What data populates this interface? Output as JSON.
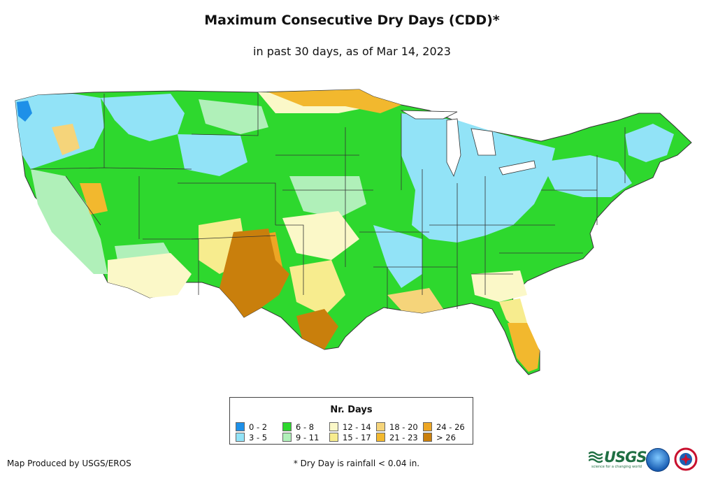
{
  "header": {
    "title": "Maximum Consecutive Dry Days (CDD)*",
    "subtitle": "in past 30 days, as of Mar 14, 2023"
  },
  "legend": {
    "title": "Nr. Days",
    "items": [
      {
        "label": "0 - 2",
        "color": "#1e90e8"
      },
      {
        "label": "3 - 5",
        "color": "#92e3f7"
      },
      {
        "label": "6 - 8",
        "color": "#2ed82e"
      },
      {
        "label": "9 - 11",
        "color": "#b0f0b9"
      },
      {
        "label": "12 - 14",
        "color": "#fbf8c8"
      },
      {
        "label": "15 - 17",
        "color": "#f7ec8e"
      },
      {
        "label": "18 - 20",
        "color": "#f5d47a"
      },
      {
        "label": "21 - 23",
        "color": "#f2b82e"
      },
      {
        "label": "24 - 26",
        "color": "#eda624"
      },
      {
        "label": "> 26",
        "color": "#c97f0c"
      }
    ]
  },
  "footer": {
    "credit": "Map Produced by USGS/EROS",
    "footnote": "* Dry Day is rainfall < 0.04 in.",
    "usgs_logo_text": "USGS",
    "usgs_tagline": "science for a changing world"
  },
  "icons": {
    "usgs": "usgs-logo-icon",
    "noaa": "noaa-logo-icon",
    "nws": "nws-logo-icon"
  }
}
